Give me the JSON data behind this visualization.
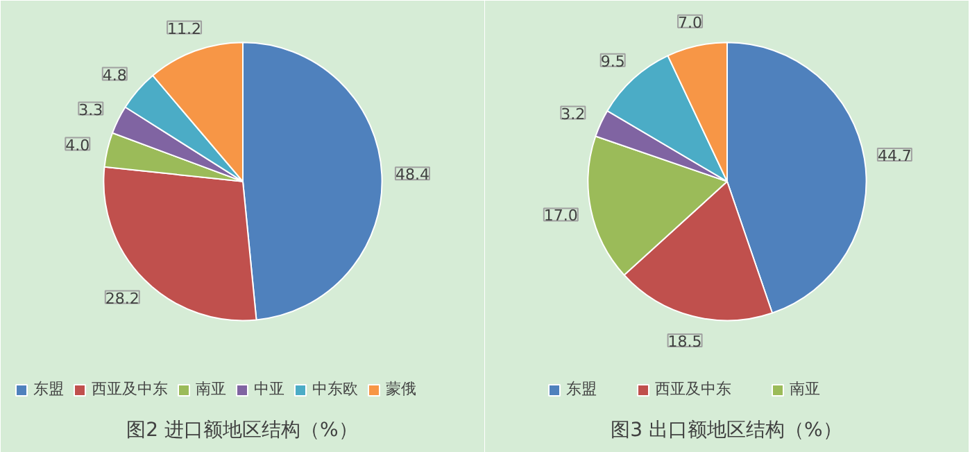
{
  "chart_data": [
    {
      "type": "pie",
      "title": "图2 进口额地区结构（%）",
      "categories": [
        "东盟",
        "西亚及中东",
        "南亚",
        "中亚",
        "中东欧",
        "蒙俄"
      ],
      "values": [
        48.4,
        28.2,
        4.0,
        3.3,
        4.8,
        11.2
      ],
      "colors": [
        "#4f81bd",
        "#c0504d",
        "#9bbb59",
        "#8064a2",
        "#4bacc6",
        "#f79646"
      ],
      "value_labels": [
        "48.4",
        "28.2",
        "4.0",
        "3.3",
        "4.8",
        "11.2"
      ],
      "legend": "bottom"
    },
    {
      "type": "pie",
      "title": "图3 出口额地区结构（%）",
      "categories": [
        "东盟",
        "西亚及中东",
        "南亚",
        null,
        null,
        null
      ],
      "values": [
        44.7,
        18.5,
        17.0,
        3.2,
        9.5,
        7.0
      ],
      "colors": [
        "#4f81bd",
        "#c0504d",
        "#9bbb59",
        "#8064a2",
        "#4bacc6",
        "#f79646"
      ],
      "value_labels": [
        "44.7",
        "18.5",
        "17.0",
        "3.2",
        "9.5",
        "7.0"
      ],
      "legend": "bottom"
    }
  ]
}
